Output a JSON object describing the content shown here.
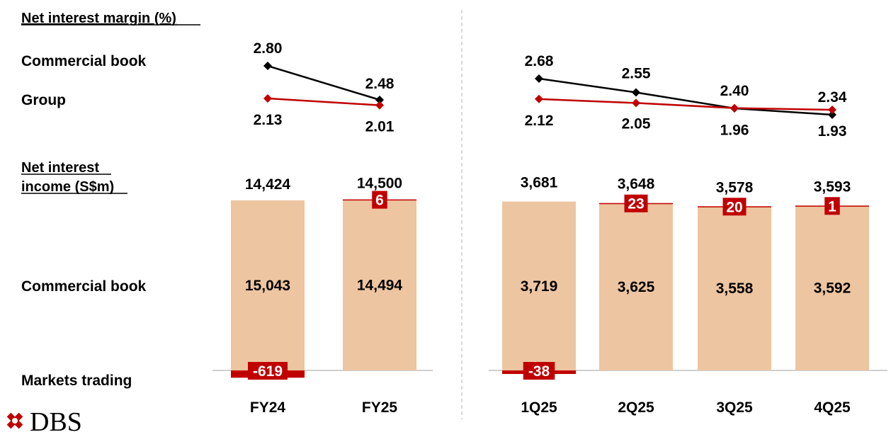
{
  "labels": {
    "nim_title": "Net interest margin (%)",
    "commercial_book": "Commercial book",
    "group": "Group",
    "nii_title_line1": "Net interest",
    "nii_title_line2": "income (S$m)",
    "nii_commercial_book": "Commercial book",
    "markets_trading": "Markets trading",
    "logo_text": "DBS"
  },
  "colors": {
    "bar": "#EDC5A1",
    "markets": "#C00000",
    "commercial_line": "#000000",
    "group_line": "#C00000",
    "baseline": "#BFBFBF",
    "divider": "#BFBFBF",
    "logo": "#C00000"
  },
  "chart_data": [
    {
      "type": "line",
      "title": "Net interest margin (%)",
      "categories": [
        "FY24",
        "FY25"
      ],
      "series": [
        {
          "name": "Commercial book",
          "values": [
            2.8,
            2.48
          ],
          "labels": [
            "2.80",
            "2.48"
          ]
        },
        {
          "name": "Group",
          "values": [
            2.13,
            2.01
          ],
          "labels": [
            "2.13",
            "2.01"
          ]
        }
      ]
    },
    {
      "type": "line",
      "title": "Net interest margin (%)",
      "categories": [
        "1Q25",
        "2Q25",
        "3Q25",
        "4Q25"
      ],
      "series": [
        {
          "name": "Commercial book",
          "values": [
            2.68,
            2.55,
            2.4,
            2.34
          ],
          "labels": [
            "2.68",
            "2.55",
            "2.40",
            "2.34"
          ]
        },
        {
          "name": "Group",
          "values": [
            2.12,
            2.05,
            1.96,
            1.93
          ],
          "labels": [
            "2.12",
            "2.05",
            "1.96",
            "1.93"
          ]
        }
      ]
    },
    {
      "type": "bar",
      "stacked": true,
      "title": "Net interest income (S$m)",
      "categories": [
        "FY24",
        "FY25"
      ],
      "series": [
        {
          "name": "Commercial book",
          "values": [
            15043,
            14494
          ],
          "labels": [
            "15,043",
            "14,494"
          ]
        },
        {
          "name": "Markets trading",
          "values": [
            -619,
            6
          ],
          "labels": [
            "-619",
            "6"
          ]
        }
      ],
      "totals": [
        14424,
        14500
      ],
      "total_labels": [
        "14,424",
        "14,500"
      ]
    },
    {
      "type": "bar",
      "stacked": true,
      "title": "Net interest income (S$m)",
      "categories": [
        "1Q25",
        "2Q25",
        "3Q25",
        "4Q25"
      ],
      "series": [
        {
          "name": "Commercial book",
          "values": [
            3719,
            3625,
            3558,
            3592
          ],
          "labels": [
            "3,719",
            "3,625",
            "3,558",
            "3,592"
          ]
        },
        {
          "name": "Markets trading",
          "values": [
            -38,
            23,
            20,
            1
          ],
          "labels": [
            "-38",
            "23",
            "20",
            "1"
          ]
        }
      ],
      "totals": [
        3681,
        3648,
        3578,
        3593
      ],
      "total_labels": [
        "3,681",
        "3,648",
        "3,578",
        "3,593"
      ]
    }
  ]
}
